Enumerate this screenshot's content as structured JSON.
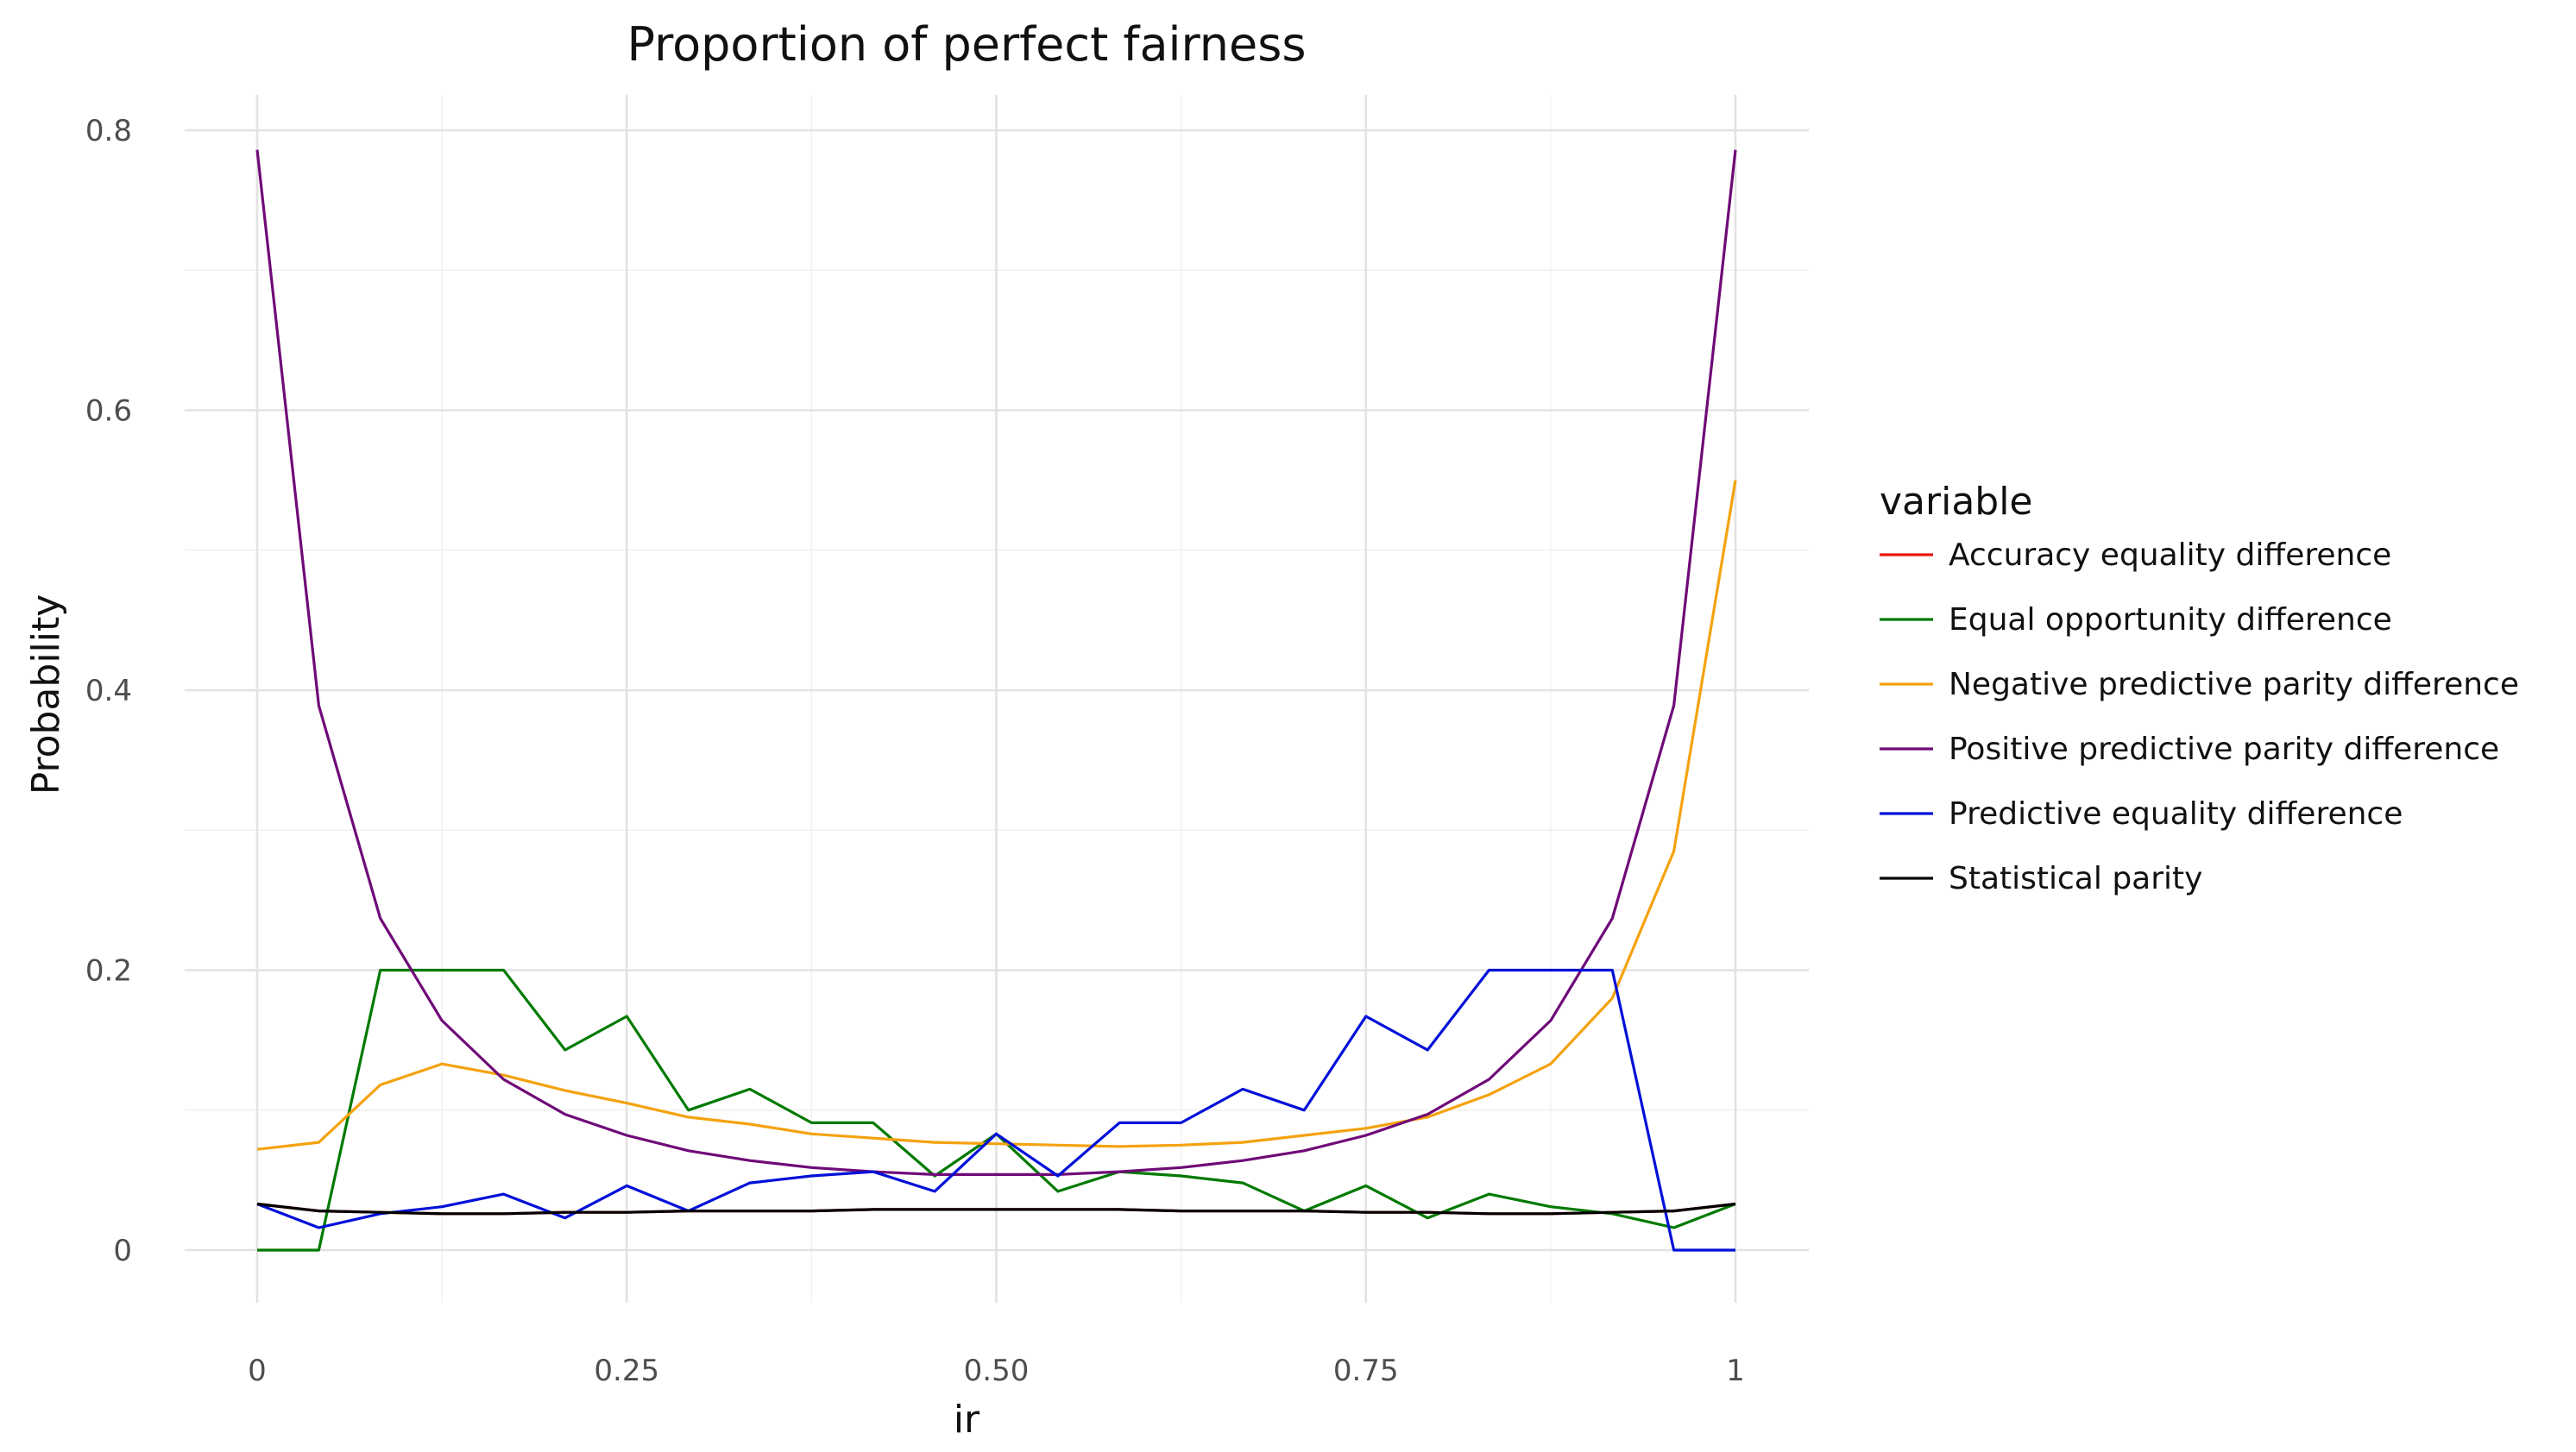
{
  "chart_data": {
    "type": "line",
    "title": "Proportion of perfect fairness",
    "xlabel": "ir",
    "ylabel": "Probability",
    "xlim": [
      0,
      1
    ],
    "ylim": [
      0,
      0.8
    ],
    "x_ticks": [
      0,
      0.25,
      0.5,
      0.75,
      1
    ],
    "x_tick_labels": [
      "0",
      "0.25",
      "0.50",
      "0.75",
      "1"
    ],
    "y_ticks": [
      0,
      0.2,
      0.4,
      0.6,
      0.8
    ],
    "y_tick_labels": [
      "0",
      "0.2",
      "0.4",
      "0.6",
      "0.8"
    ],
    "grid": true,
    "legend": {
      "title": "variable",
      "placement": "right"
    },
    "x": [
      0,
      0.0417,
      0.0833,
      0.125,
      0.1667,
      0.2083,
      0.25,
      0.2917,
      0.3333,
      0.375,
      0.4167,
      0.4583,
      0.5,
      0.5417,
      0.5833,
      0.625,
      0.6667,
      0.7083,
      0.75,
      0.7917,
      0.8333,
      0.875,
      0.9167,
      0.9583,
      1
    ],
    "series": [
      {
        "name": "Accuracy equality difference",
        "color": "#e8160c",
        "values": [
          0.033,
          0.028,
          0.027,
          0.026,
          0.026,
          0.027,
          0.027,
          0.028,
          0.028,
          0.028,
          0.029,
          0.029,
          0.029,
          0.029,
          0.029,
          0.028,
          0.028,
          0.028,
          0.027,
          0.027,
          0.026,
          0.026,
          0.027,
          0.028,
          0.033
        ]
      },
      {
        "name": "Equal opportunity difference",
        "color": "#007a00",
        "values": [
          0,
          0,
          0.2,
          0.2,
          0.2,
          0.143,
          0.167,
          0.1,
          0.115,
          0.091,
          0.091,
          0.053,
          0.083,
          0.042,
          0.056,
          0.053,
          0.048,
          0.028,
          0.046,
          0.023,
          0.04,
          0.031,
          0.026,
          0.016,
          0.033
        ]
      },
      {
        "name": "Negative predictive parity difference",
        "color": "#f4a20f",
        "values": [
          0.072,
          0.077,
          0.118,
          0.133,
          0.125,
          0.114,
          0.105,
          0.095,
          0.09,
          0.083,
          0.08,
          0.077,
          0.076,
          0.075,
          0.074,
          0.075,
          0.077,
          0.082,
          0.087,
          0.095,
          0.111,
          0.133,
          0.18,
          0.285,
          0.55
        ]
      },
      {
        "name": "Positive predictive parity difference",
        "color": "#6f0a78",
        "values": [
          0.786,
          0.389,
          0.237,
          0.164,
          0.122,
          0.097,
          0.082,
          0.071,
          0.064,
          0.059,
          0.056,
          0.054,
          0.054,
          0.054,
          0.056,
          0.059,
          0.064,
          0.071,
          0.082,
          0.097,
          0.122,
          0.164,
          0.237,
          0.389,
          0.786
        ]
      },
      {
        "name": "Predictive equality difference",
        "color": "#0010d8",
        "values": [
          0.033,
          0.016,
          0.026,
          0.031,
          0.04,
          0.023,
          0.046,
          0.028,
          0.048,
          0.053,
          0.056,
          0.042,
          0.083,
          0.053,
          0.091,
          0.091,
          0.115,
          0.1,
          0.167,
          0.143,
          0.2,
          0.2,
          0.2,
          0,
          0
        ]
      },
      {
        "name": "Statistical parity",
        "color": "#000000",
        "values": [
          0.033,
          0.028,
          0.027,
          0.026,
          0.026,
          0.027,
          0.027,
          0.028,
          0.028,
          0.028,
          0.029,
          0.029,
          0.029,
          0.029,
          0.029,
          0.028,
          0.028,
          0.028,
          0.027,
          0.027,
          0.026,
          0.026,
          0.027,
          0.028,
          0.033
        ]
      }
    ]
  }
}
